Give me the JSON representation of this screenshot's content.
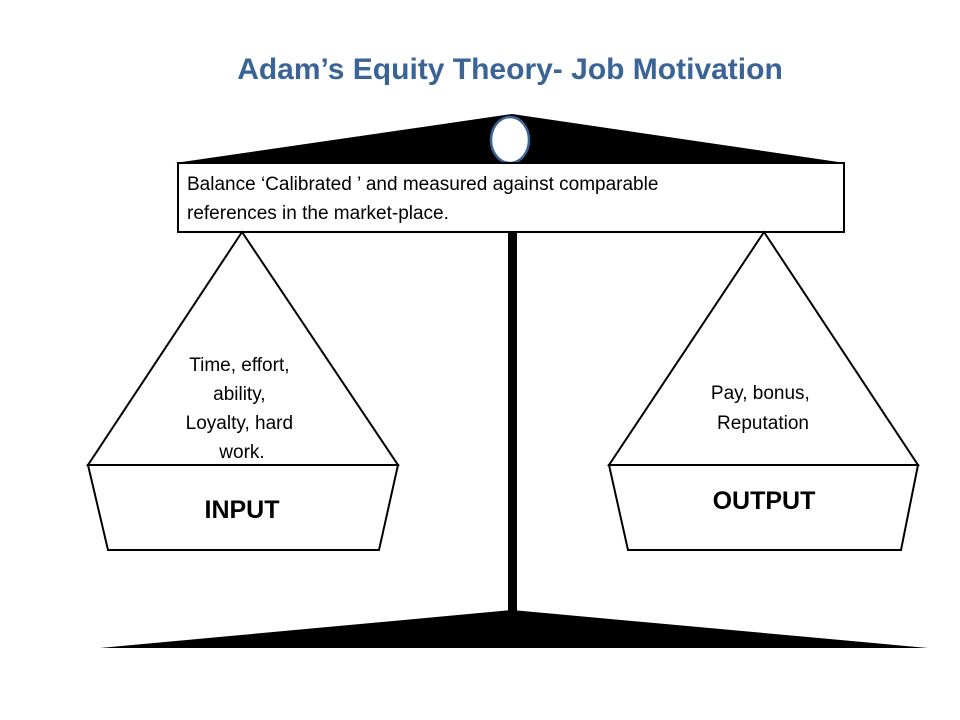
{
  "title": "Adam’s Equity Theory- Job Motivation",
  "beam": {
    "lines": [
      "Balance ‘Calibrated ’ and measured against comparable",
      "references in the market-place."
    ]
  },
  "input_pan": {
    "items": [
      "Time,  effort,",
      "ability,",
      "Loyalty, hard",
      "work."
    ],
    "label": "INPUT"
  },
  "output_pan": {
    "items": [
      "Pay, bonus,",
      "Reputation"
    ],
    "label": "OUTPUT"
  },
  "colors": {
    "title": "#3b6496",
    "pivot_outline": "#3b6496",
    "scale": "#000000",
    "background": "#ffffff"
  }
}
